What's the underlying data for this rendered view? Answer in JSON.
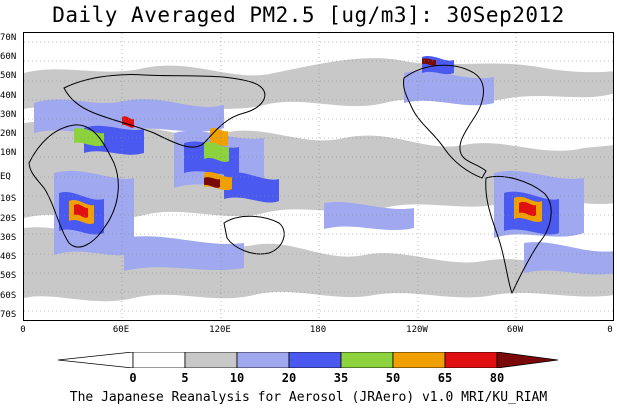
{
  "title": "Daily Averaged PM2.5 [ug/m3]: 30Sep2012",
  "footer": "The Japanese Reanalysis for Aerosol (JRAero) v1.0 MRI/KU_RIAM",
  "map": {
    "projection": "equirectangular",
    "lon_range": [
      0,
      360
    ],
    "lat_range": [
      -75,
      75
    ],
    "grid": "dotted",
    "lat_labels": [
      "70N",
      "60N",
      "50N",
      "40N",
      "30N",
      "20N",
      "10N",
      "EQ",
      "10S",
      "20S",
      "30S",
      "40S",
      "50S",
      "60S",
      "70S"
    ],
    "lon_labels": [
      "0",
      "60E",
      "120E",
      "180",
      "120W",
      "60W",
      "0"
    ]
  },
  "legend": {
    "levels": [
      "0",
      "5",
      "10",
      "20",
      "35",
      "50",
      "65",
      "80"
    ],
    "colors": [
      "#ffffff",
      "#c8c8c8",
      "#a0a8f0",
      "#4a5af0",
      "#8cd23c",
      "#f0a000",
      "#e01010",
      "#7a0a0a"
    ]
  }
}
